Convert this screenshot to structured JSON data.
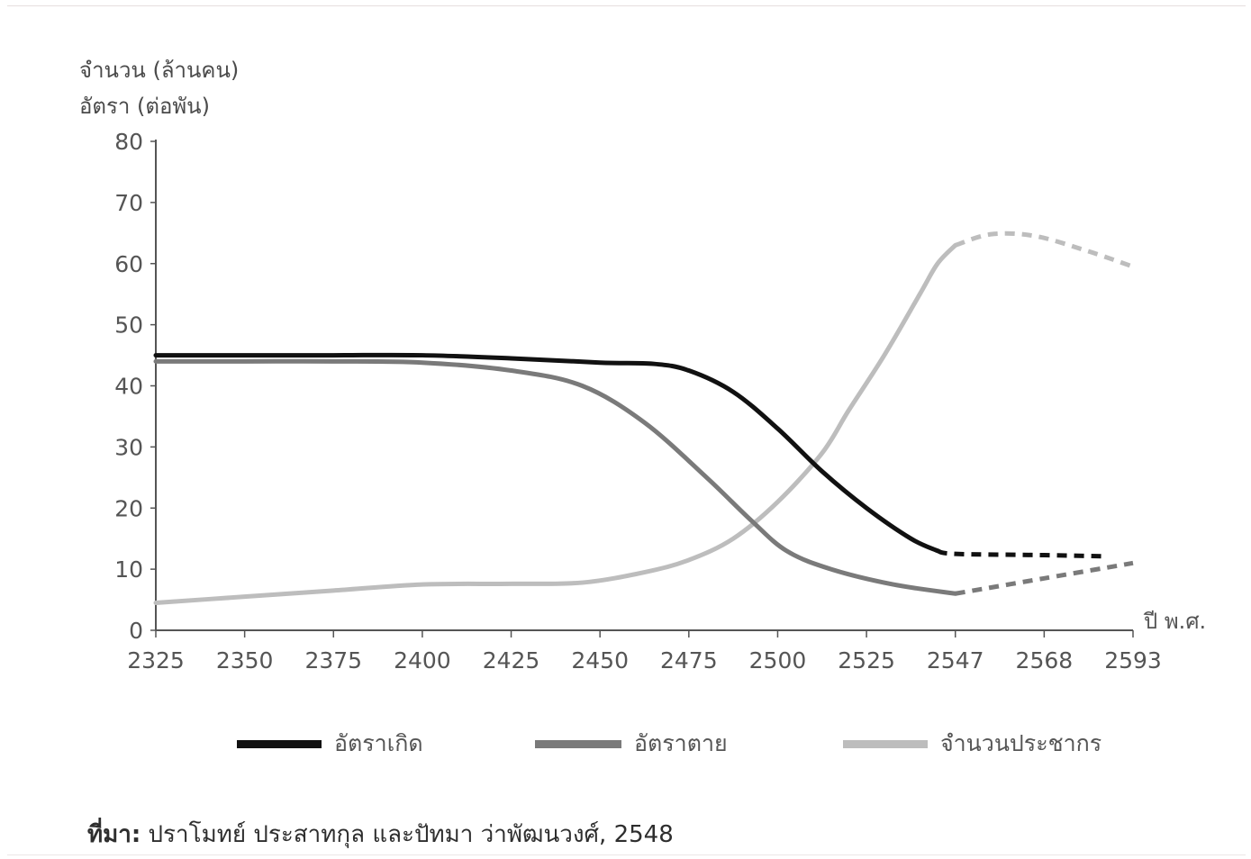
{
  "chart_data": {
    "type": "line",
    "ylabel_lines": [
      "จำนวน (ล้านคน)",
      "อัตรา (ต่อพัน)"
    ],
    "xlabel": "ปี พ.ศ.",
    "yticks": [
      0,
      10,
      20,
      30,
      40,
      50,
      60,
      70,
      80
    ],
    "ylim": [
      0,
      80
    ],
    "xticks": [
      "2325",
      "2350",
      "2375",
      "2400",
      "2425",
      "2450",
      "2475",
      "2500",
      "2525",
      "2547",
      "2568",
      "2593"
    ],
    "grid": false,
    "legend_position": "bottom",
    "series": [
      {
        "name": "อัตราเกิด",
        "color": "#111111",
        "points": [
          [
            0,
            45
          ],
          [
            1,
            45
          ],
          [
            2,
            45
          ],
          [
            3,
            45
          ],
          [
            4,
            44.5
          ],
          [
            5,
            43.8
          ],
          [
            5.6,
            43.6
          ],
          [
            6,
            42.5
          ],
          [
            6.5,
            39
          ],
          [
            7,
            33
          ],
          [
            7.5,
            26
          ],
          [
            8,
            20
          ],
          [
            8.5,
            15
          ],
          [
            8.8,
            13
          ]
        ],
        "projected": [
          [
            8.8,
            13
          ],
          [
            9,
            12.5
          ],
          [
            10,
            12.3
          ],
          [
            10.7,
            12.1
          ]
        ]
      },
      {
        "name": "อัตราตาย",
        "color": "#7a7a7a",
        "points": [
          [
            0,
            44
          ],
          [
            1,
            44
          ],
          [
            2,
            44
          ],
          [
            3,
            43.8
          ],
          [
            4,
            42.5
          ],
          [
            4.8,
            40
          ],
          [
            5.5,
            34
          ],
          [
            6.2,
            25
          ],
          [
            6.7,
            18
          ],
          [
            7.1,
            13
          ],
          [
            7.6,
            10
          ],
          [
            8.3,
            7.5
          ],
          [
            9,
            6
          ]
        ],
        "projected": [
          [
            9,
            6
          ],
          [
            10,
            8.5
          ],
          [
            11,
            11
          ]
        ]
      },
      {
        "name": "จำนวนประชากร",
        "color": "#bdbdbd",
        "points": [
          [
            0,
            4.5
          ],
          [
            1,
            5.5
          ],
          [
            2,
            6.5
          ],
          [
            3,
            7.5
          ],
          [
            4,
            7.6
          ],
          [
            4.8,
            7.8
          ],
          [
            5.5,
            9.5
          ],
          [
            6,
            11.5
          ],
          [
            6.5,
            15
          ],
          [
            7,
            21
          ],
          [
            7.5,
            29
          ],
          [
            7.8,
            36
          ],
          [
            8.2,
            45
          ],
          [
            8.6,
            55
          ],
          [
            8.8,
            60
          ],
          [
            9,
            63
          ]
        ],
        "projected": [
          [
            9,
            63
          ],
          [
            9.4,
            64.8
          ],
          [
            9.9,
            64.5
          ],
          [
            10.5,
            62
          ],
          [
            11,
            59.5
          ]
        ]
      }
    ]
  },
  "source": {
    "prefix": "ที่มา:",
    "text": " ปราโมทย์ ประสาทกุล และปัทมา ว่าพัฒนวงศ์, 2548"
  }
}
